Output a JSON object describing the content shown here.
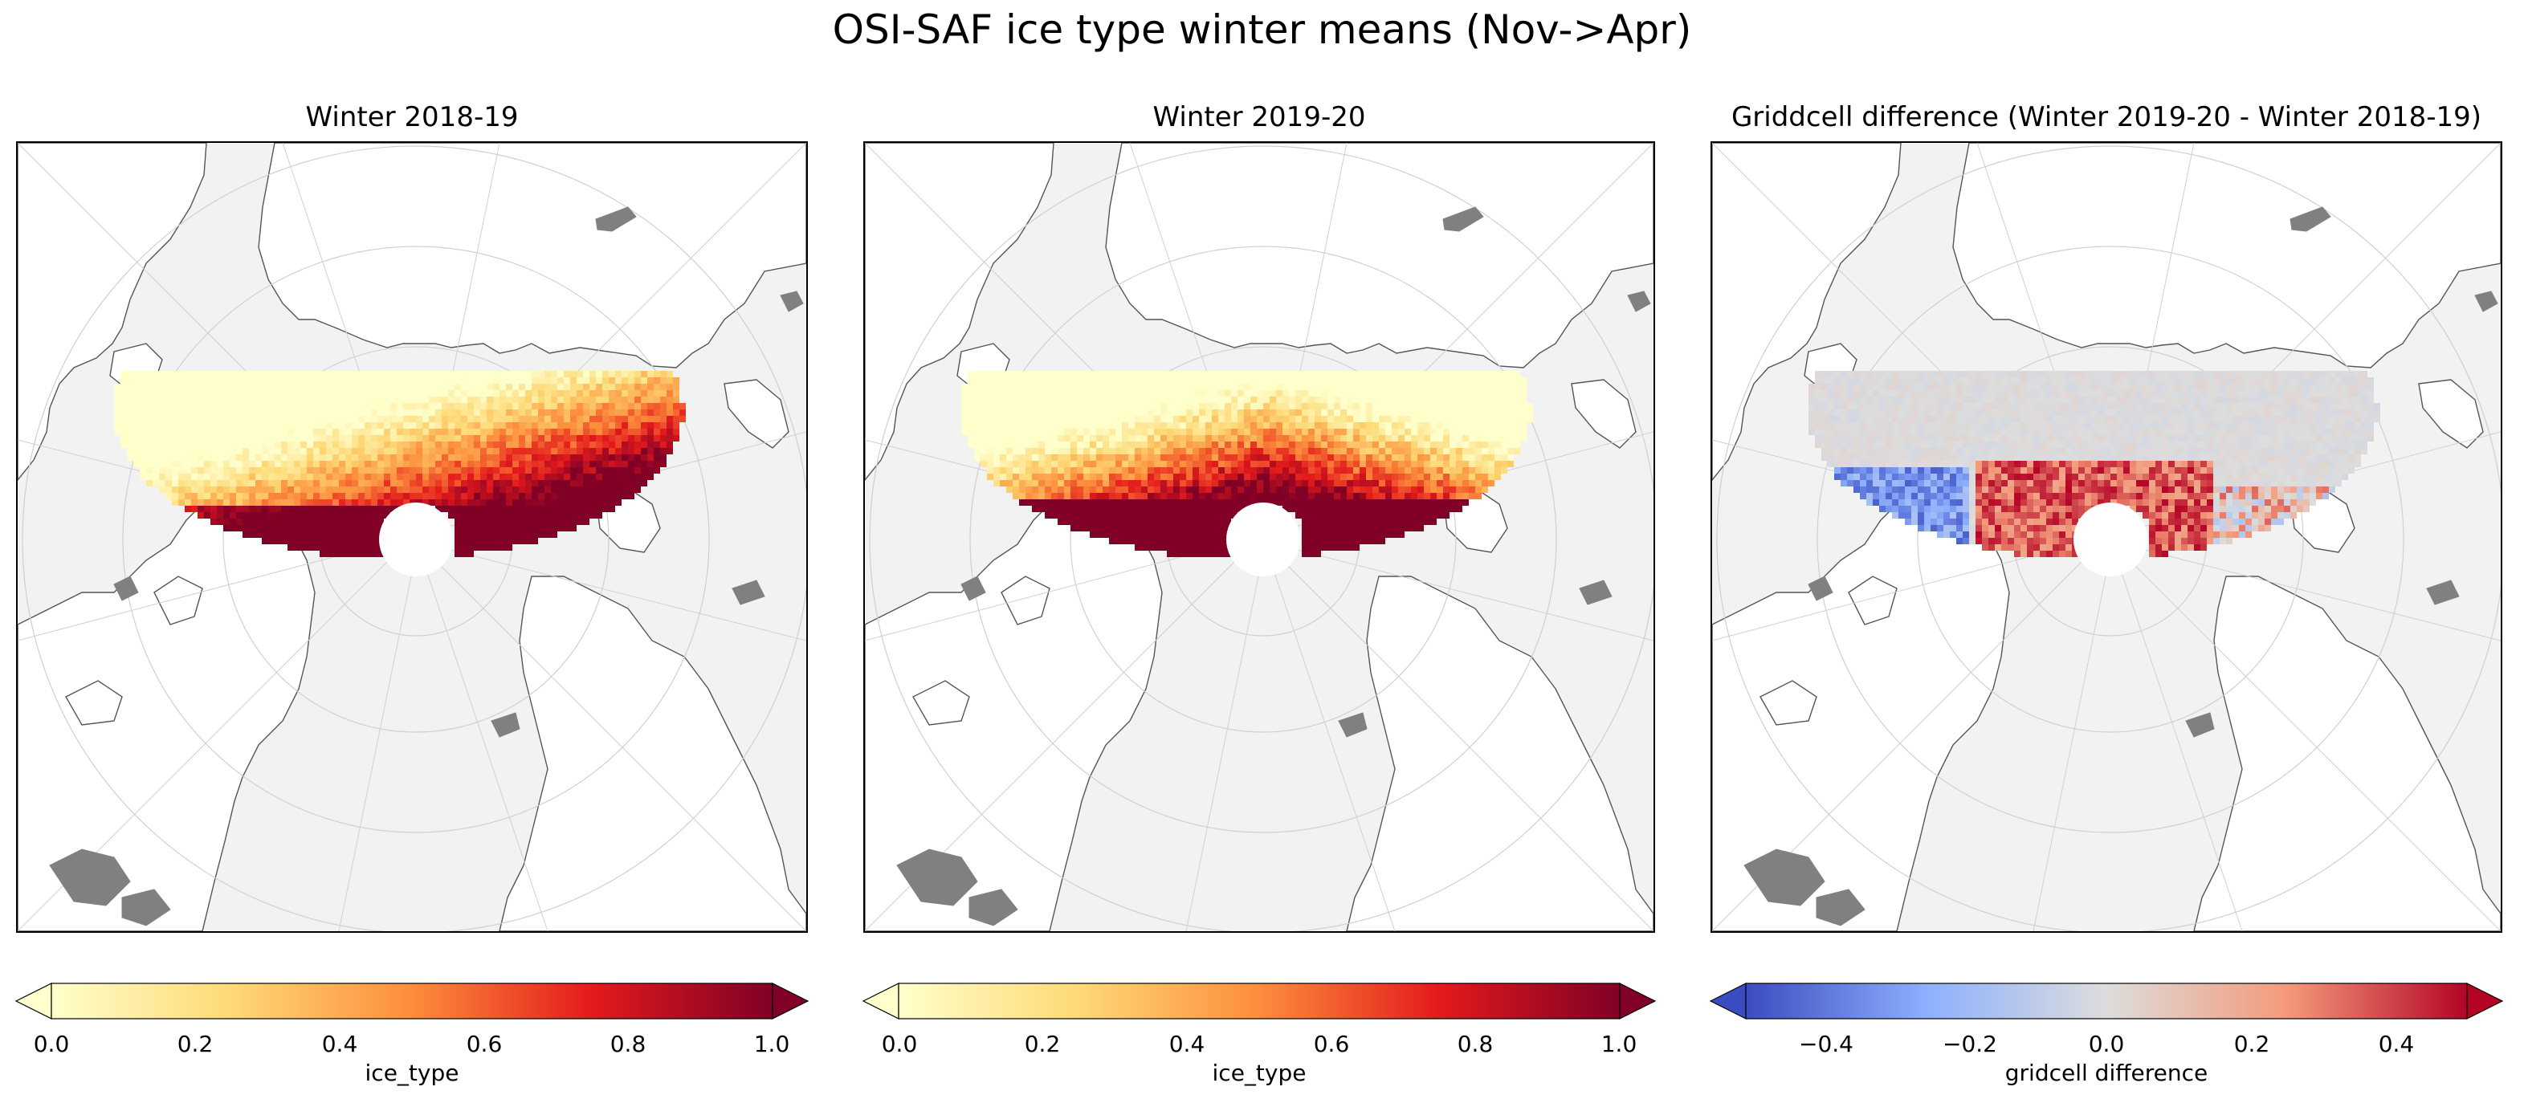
{
  "title": "OSI-SAF ice type winter means (Nov->Apr)",
  "colors": {
    "land": "#ffffff",
    "ocean_bg": "#f2f2f2",
    "grid": "#d0d0d0",
    "coast": "#555555",
    "lake": "#808080",
    "no_change": "#d9d9d9",
    "pole_hole": "#ffffff"
  },
  "chart_data": [
    {
      "type": "heatmap",
      "title": "Winter 2018-19",
      "colormap": "YlOrRd",
      "colorbar_label": "ice_type",
      "colorbar_ticks": [
        "0.0",
        "0.2",
        "0.4",
        "0.6",
        "0.8",
        "1.0"
      ],
      "range": [
        0.0,
        1.0
      ],
      "extend": "both",
      "grid": true
    },
    {
      "type": "heatmap",
      "title": "Winter 2019-20",
      "colormap": "YlOrRd",
      "colorbar_label": "ice_type",
      "colorbar_ticks": [
        "0.0",
        "0.2",
        "0.4",
        "0.6",
        "0.8",
        "1.0"
      ],
      "range": [
        0.0,
        1.0
      ],
      "extend": "both",
      "grid": true
    },
    {
      "type": "heatmap",
      "title": "Griddcell difference (Winter 2019-20 - Winter 2018-19)",
      "colormap": "coolwarm",
      "colorbar_label": "gridcell difference",
      "colorbar_ticks": [
        "−0.4",
        "−0.2",
        "0.0",
        "0.2",
        "0.4"
      ],
      "range": [
        -0.5,
        0.5
      ],
      "extend": "both",
      "grid": true
    }
  ]
}
